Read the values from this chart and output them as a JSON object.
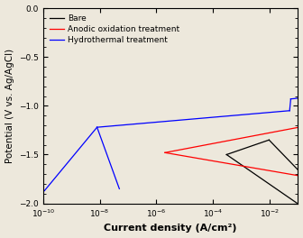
{
  "title": "",
  "xlabel": "Current density (A/cm²)",
  "ylabel": "Potential (V vs. Ag/AgCl)",
  "xlim": [
    1e-10,
    0.1
  ],
  "ylim": [
    -2.0,
    0.0
  ],
  "background_color": "#ede8dc",
  "legend_entries": [
    "Bare",
    "Anodic oxidation treatment",
    "Hydrothermal treatment"
  ],
  "legend_colors": [
    "black",
    "red",
    "blue"
  ],
  "xlabel_fontsize": 8,
  "ylabel_fontsize": 7.5,
  "tick_fontsize": 6.5,
  "legend_fontsize": 6.5
}
